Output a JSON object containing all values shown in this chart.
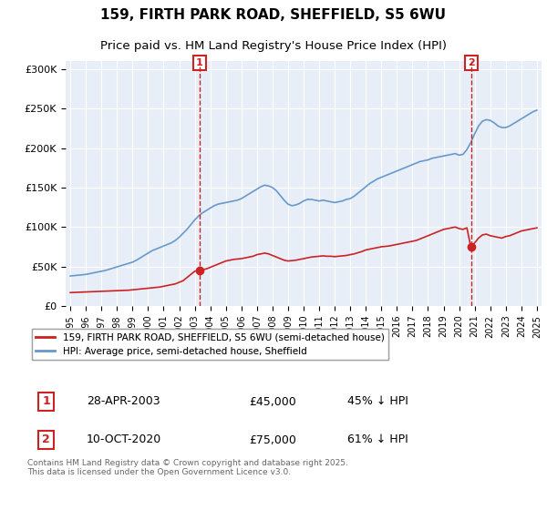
{
  "title_line1": "159, FIRTH PARK ROAD, SHEFFIELD, S5 6WU",
  "title_line2": "Price paid vs. HM Land Registry's House Price Index (HPI)",
  "ylabel": "",
  "xlabel": "",
  "background_color": "#e8eef7",
  "plot_bg_color": "#e8eef7",
  "hpi_color": "#6699cc",
  "price_color": "#cc2222",
  "vline_color": "#cc2222",
  "ylim": [
    0,
    310000
  ],
  "yticks": [
    0,
    50000,
    100000,
    150000,
    200000,
    250000,
    300000
  ],
  "ytick_labels": [
    "£0",
    "£50K",
    "£100K",
    "£150K",
    "£200K",
    "£250K",
    "£300K"
  ],
  "sale1_date": 2003.32,
  "sale1_price": 45000,
  "sale1_label": "1",
  "sale1_year_label": "28-APR-2003",
  "sale1_price_label": "£45,000",
  "sale1_pct_label": "45% ↓ HPI",
  "sale2_date": 2020.78,
  "sale2_price": 75000,
  "sale2_label": "2",
  "sale2_year_label": "10-OCT-2020",
  "sale2_price_label": "£75,000",
  "sale2_pct_label": "61% ↓ HPI",
  "legend_line1": "159, FIRTH PARK ROAD, SHEFFIELD, S5 6WU (semi-detached house)",
  "legend_line2": "HPI: Average price, semi-detached house, Sheffield",
  "footer": "Contains HM Land Registry data © Crown copyright and database right 2025.\nThis data is licensed under the Open Government Licence v3.0.",
  "hpi_x": [
    1995.0,
    1995.25,
    1995.5,
    1995.75,
    1996.0,
    1996.25,
    1996.5,
    1996.75,
    1997.0,
    1997.25,
    1997.5,
    1997.75,
    1998.0,
    1998.25,
    1998.5,
    1998.75,
    1999.0,
    1999.25,
    1999.5,
    1999.75,
    2000.0,
    2000.25,
    2000.5,
    2000.75,
    2001.0,
    2001.25,
    2001.5,
    2001.75,
    2002.0,
    2002.25,
    2002.5,
    2002.75,
    2003.0,
    2003.25,
    2003.5,
    2003.75,
    2004.0,
    2004.25,
    2004.5,
    2004.75,
    2005.0,
    2005.25,
    2005.5,
    2005.75,
    2006.0,
    2006.25,
    2006.5,
    2006.75,
    2007.0,
    2007.25,
    2007.5,
    2007.75,
    2008.0,
    2008.25,
    2008.5,
    2008.75,
    2009.0,
    2009.25,
    2009.5,
    2009.75,
    2010.0,
    2010.25,
    2010.5,
    2010.75,
    2011.0,
    2011.25,
    2011.5,
    2011.75,
    2012.0,
    2012.25,
    2012.5,
    2012.75,
    2013.0,
    2013.25,
    2013.5,
    2013.75,
    2014.0,
    2014.25,
    2014.5,
    2014.75,
    2015.0,
    2015.25,
    2015.5,
    2015.75,
    2016.0,
    2016.25,
    2016.5,
    2016.75,
    2017.0,
    2017.25,
    2017.5,
    2017.75,
    2018.0,
    2018.25,
    2018.5,
    2018.75,
    2019.0,
    2019.25,
    2019.5,
    2019.75,
    2020.0,
    2020.25,
    2020.5,
    2020.75,
    2021.0,
    2021.25,
    2021.5,
    2021.75,
    2022.0,
    2022.25,
    2022.5,
    2022.75,
    2023.0,
    2023.25,
    2023.5,
    2023.75,
    2024.0,
    2024.25,
    2024.5,
    2024.75,
    2025.0
  ],
  "hpi_y": [
    38000,
    38500,
    39000,
    39500,
    40000,
    41000,
    42000,
    43000,
    44000,
    45000,
    46500,
    48000,
    49500,
    51000,
    52500,
    54000,
    55500,
    58000,
    61000,
    64000,
    67000,
    70000,
    72000,
    74000,
    76000,
    78000,
    80000,
    83000,
    87000,
    92000,
    97000,
    103000,
    109000,
    114000,
    118000,
    121000,
    124000,
    127000,
    129000,
    130000,
    131000,
    132000,
    133000,
    134000,
    136000,
    139000,
    142000,
    145000,
    148000,
    151000,
    153000,
    152000,
    150000,
    146000,
    140000,
    134000,
    129000,
    127000,
    128000,
    130000,
    133000,
    135000,
    135000,
    134000,
    133000,
    134000,
    133000,
    132000,
    131000,
    132000,
    133000,
    135000,
    136000,
    139000,
    143000,
    147000,
    151000,
    155000,
    158000,
    161000,
    163000,
    165000,
    167000,
    169000,
    171000,
    173000,
    175000,
    177000,
    179000,
    181000,
    183000,
    184000,
    185000,
    187000,
    188000,
    189000,
    190000,
    191000,
    192000,
    193000,
    191000,
    192000,
    198000,
    207000,
    218000,
    228000,
    234000,
    236000,
    235000,
    232000,
    228000,
    226000,
    226000,
    228000,
    231000,
    234000,
    237000,
    240000,
    243000,
    246000,
    248000
  ],
  "price_x": [
    1995.0,
    1995.25,
    1995.5,
    1995.75,
    1996.0,
    1996.25,
    1996.5,
    1996.75,
    1997.0,
    1997.25,
    1997.5,
    1997.75,
    1998.0,
    1998.25,
    1998.5,
    1998.75,
    1999.0,
    1999.25,
    1999.5,
    1999.75,
    2000.0,
    2000.25,
    2000.5,
    2000.75,
    2001.0,
    2001.25,
    2001.5,
    2001.75,
    2002.0,
    2002.25,
    2002.5,
    2002.75,
    2003.0,
    2003.25,
    2003.5,
    2003.75,
    2004.0,
    2004.25,
    2004.5,
    2004.75,
    2005.0,
    2005.25,
    2005.5,
    2005.75,
    2006.0,
    2006.25,
    2006.5,
    2006.75,
    2007.0,
    2007.25,
    2007.5,
    2007.75,
    2008.0,
    2008.25,
    2008.5,
    2008.75,
    2009.0,
    2009.25,
    2009.5,
    2009.75,
    2010.0,
    2010.25,
    2010.5,
    2010.75,
    2011.0,
    2011.25,
    2011.5,
    2011.75,
    2012.0,
    2012.25,
    2012.5,
    2012.75,
    2013.0,
    2013.25,
    2013.5,
    2013.75,
    2014.0,
    2014.25,
    2014.5,
    2014.75,
    2015.0,
    2015.25,
    2015.5,
    2015.75,
    2016.0,
    2016.25,
    2016.5,
    2016.75,
    2017.0,
    2017.25,
    2017.5,
    2017.75,
    2018.0,
    2018.25,
    2018.5,
    2018.75,
    2019.0,
    2019.25,
    2019.5,
    2019.75,
    2020.0,
    2020.25,
    2020.5,
    2020.75,
    2021.0,
    2021.25,
    2021.5,
    2021.75,
    2022.0,
    2022.25,
    2022.5,
    2022.75,
    2023.0,
    2023.25,
    2023.5,
    2023.75,
    2024.0,
    2024.25,
    2024.5,
    2024.75,
    2025.0
  ],
  "price_y": [
    17000,
    17200,
    17400,
    17600,
    17800,
    18000,
    18200,
    18400,
    18600,
    18800,
    19000,
    19200,
    19400,
    19600,
    19800,
    20000,
    20500,
    21000,
    21500,
    22000,
    22500,
    23000,
    23500,
    24000,
    25000,
    26000,
    27000,
    28000,
    30000,
    32000,
    36000,
    40000,
    44000,
    45000,
    46000,
    47000,
    49000,
    51000,
    53000,
    55000,
    57000,
    58000,
    59000,
    59500,
    60000,
    61000,
    62000,
    63000,
    65000,
    66000,
    67000,
    66000,
    64000,
    62000,
    60000,
    58000,
    57000,
    57500,
    58000,
    59000,
    60000,
    61000,
    62000,
    62500,
    63000,
    63500,
    63000,
    63000,
    62500,
    63000,
    63500,
    64000,
    65000,
    66000,
    67500,
    69000,
    71000,
    72000,
    73000,
    74000,
    75000,
    75500,
    76000,
    77000,
    78000,
    79000,
    80000,
    81000,
    82000,
    83000,
    85000,
    87000,
    89000,
    91000,
    93000,
    95000,
    97000,
    98000,
    99000,
    100000,
    98000,
    97000,
    99000,
    75000,
    80000,
    86000,
    90000,
    91000,
    89000,
    88000,
    87000,
    86000,
    88000,
    89000,
    91000,
    93000,
    95000,
    96000,
    97000,
    98000,
    99000
  ]
}
